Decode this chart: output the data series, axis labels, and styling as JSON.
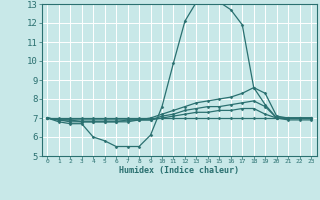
{
  "xlabel": "Humidex (Indice chaleur)",
  "bg_color": "#c8e8e8",
  "grid_color": "#ffffff",
  "line_color": "#2a7070",
  "xlim": [
    -0.5,
    23.5
  ],
  "ylim": [
    5,
    13
  ],
  "xticks": [
    0,
    1,
    2,
    3,
    4,
    5,
    6,
    7,
    8,
    9,
    10,
    11,
    12,
    13,
    14,
    15,
    16,
    17,
    18,
    19,
    20,
    21,
    22,
    23
  ],
  "yticks": [
    5,
    6,
    7,
    8,
    9,
    10,
    11,
    12,
    13
  ],
  "series": [
    [
      7.0,
      6.8,
      6.7,
      6.7,
      6.0,
      5.8,
      5.5,
      5.5,
      5.5,
      6.1,
      7.6,
      9.9,
      12.1,
      13.1,
      13.2,
      13.1,
      12.7,
      11.9,
      8.6,
      7.7,
      7.0,
      6.9,
      6.9,
      6.9
    ],
    [
      7.0,
      6.9,
      6.8,
      6.8,
      6.8,
      6.8,
      6.8,
      6.9,
      6.9,
      7.0,
      7.2,
      7.4,
      7.6,
      7.8,
      7.9,
      8.0,
      8.1,
      8.3,
      8.6,
      8.3,
      7.1,
      7.0,
      7.0,
      7.0
    ],
    [
      7.0,
      6.9,
      6.9,
      6.8,
      6.8,
      6.8,
      6.8,
      6.8,
      6.9,
      6.9,
      7.1,
      7.2,
      7.4,
      7.5,
      7.6,
      7.6,
      7.7,
      7.8,
      7.9,
      7.6,
      7.0,
      7.0,
      7.0,
      7.0
    ],
    [
      7.0,
      6.9,
      6.9,
      6.9,
      6.9,
      6.9,
      6.9,
      6.9,
      6.9,
      6.9,
      7.0,
      7.1,
      7.2,
      7.3,
      7.3,
      7.4,
      7.4,
      7.5,
      7.5,
      7.2,
      7.0,
      7.0,
      7.0,
      7.0
    ],
    [
      7.0,
      7.0,
      7.0,
      7.0,
      7.0,
      7.0,
      7.0,
      7.0,
      7.0,
      7.0,
      7.0,
      7.0,
      7.0,
      7.0,
      7.0,
      7.0,
      7.0,
      7.0,
      7.0,
      7.0,
      7.0,
      7.0,
      7.0,
      7.0
    ]
  ]
}
